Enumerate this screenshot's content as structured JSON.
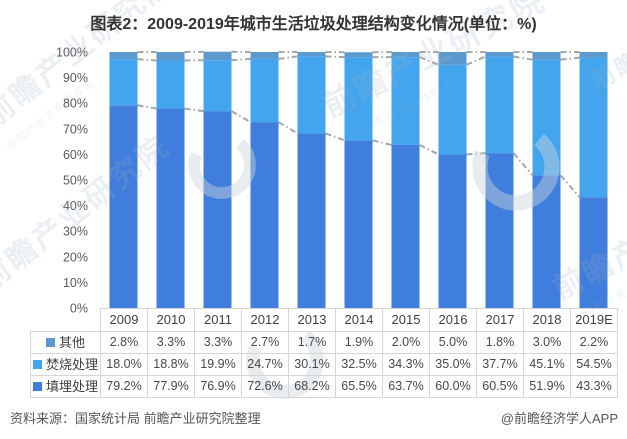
{
  "page": {
    "title": "图表2：2009-2019年城市生活垃圾处理结构变化情况(单位：%)"
  },
  "chart_data": {
    "type": "bar",
    "stacked": true,
    "orientation": "vertical",
    "unit": "%",
    "title": "图表2：2009-2019年城市生活垃圾处理结构变化情况(单位：%)",
    "categories": [
      "2009",
      "2010",
      "2011",
      "2012",
      "2013",
      "2014",
      "2015",
      "2016",
      "2017",
      "2018",
      "2019E"
    ],
    "series": [
      {
        "name": "填埋处理",
        "color": "#3f7edc",
        "values": [
          79.2,
          77.9,
          76.9,
          72.6,
          68.2,
          65.5,
          63.7,
          60.0,
          60.5,
          51.9,
          43.3
        ]
      },
      {
        "name": "焚烧处理",
        "color": "#42a5ee",
        "values": [
          18.0,
          18.8,
          19.9,
          24.7,
          30.1,
          32.5,
          34.3,
          35.0,
          37.7,
          45.1,
          54.5
        ]
      },
      {
        "name": "其他",
        "color": "#5c99cf",
        "values": [
          2.8,
          3.3,
          3.3,
          2.7,
          1.7,
          1.9,
          2.0,
          5.0,
          1.8,
          3.0,
          2.2
        ]
      }
    ],
    "ylim": [
      0,
      100
    ],
    "y_ticks": [
      "0%",
      "10%",
      "20%",
      "30%",
      "40%",
      "50%",
      "60%",
      "70%",
      "80%",
      "90%",
      "100%"
    ],
    "grid": false,
    "series_lines": {
      "style": "dash-dot",
      "color": "#a6a6a6"
    },
    "legend_position": "table-left-column",
    "table_row_order": [
      "其他",
      "焚烧处理",
      "填埋处理"
    ]
  },
  "footer": {
    "source": "资料来源：国家统计局 前瞻产业研究院整理",
    "credit": "@前瞻经济学人APP"
  },
  "watermark": {
    "text": "前瞻产业研究院",
    "subtext": "中国产业咨询领导者",
    "logo_name": "qianzhan-circle-logo"
  },
  "colors": {
    "title_text": "#333333",
    "axis_text": "#595959",
    "table_border": "#d6d6d6",
    "series_line": "#a6a6a6",
    "watermark": "#9fb4c6"
  }
}
